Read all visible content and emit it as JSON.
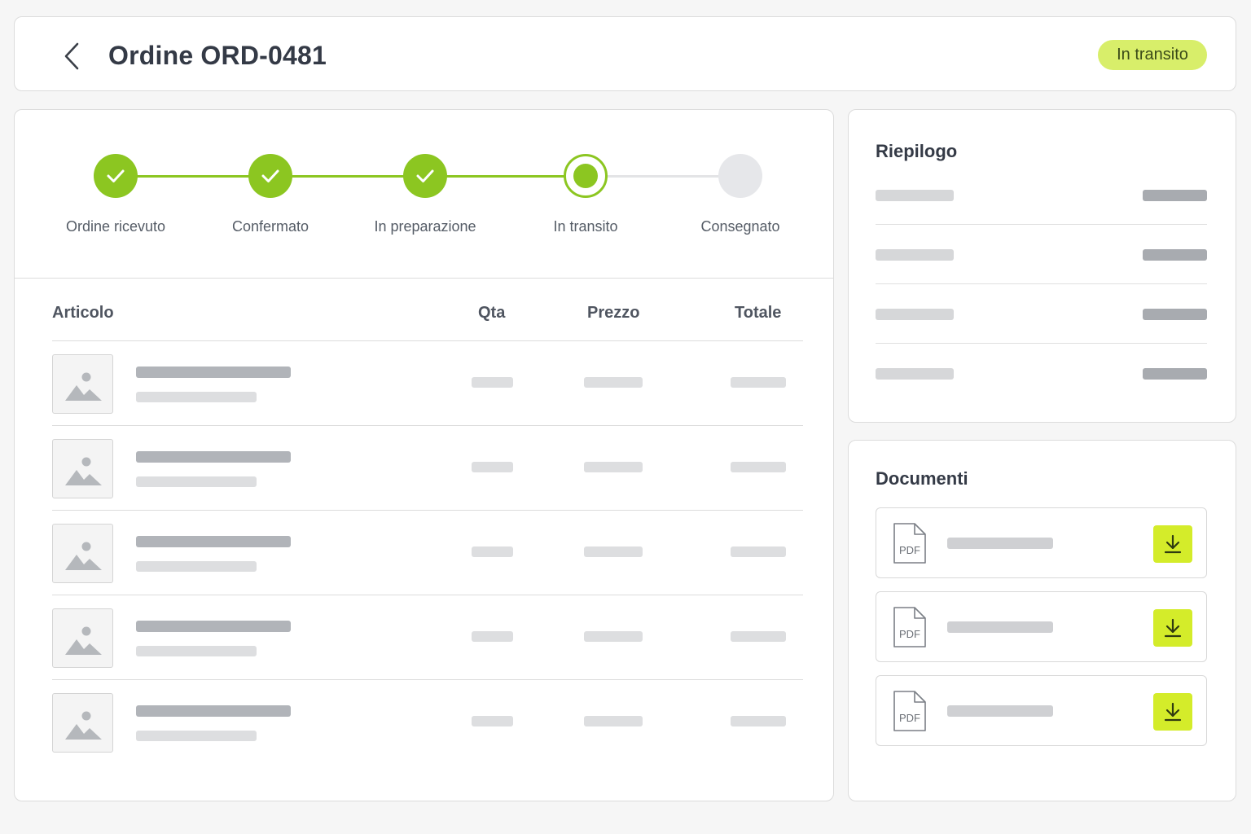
{
  "header": {
    "title": "Ordine ORD-0481",
    "status": "In transito",
    "back_icon": "chevron-left-icon"
  },
  "stepper": {
    "steps": [
      {
        "label": "Ordine ricevuto",
        "state": "done"
      },
      {
        "label": "Confermato",
        "state": "done"
      },
      {
        "label": "In preparazione",
        "state": "done"
      },
      {
        "label": "In transito",
        "state": "current"
      },
      {
        "label": "Consegnato",
        "state": "pending"
      }
    ]
  },
  "table": {
    "columns": {
      "item": "Articolo",
      "qty": "Qta",
      "price": "Prezzo",
      "total": "Totale"
    },
    "row_count": 5
  },
  "summary": {
    "title": "Riepilogo",
    "row_count": 4
  },
  "documents": {
    "title": "Documenti",
    "items": [
      {
        "type": "PDF"
      },
      {
        "type": "PDF"
      },
      {
        "type": "PDF"
      }
    ]
  },
  "colors": {
    "accent_green": "#8cc621",
    "badge_bg": "#d8ee6a",
    "download_bg": "#d4ec2a",
    "pending_gray": "#e6e7ea"
  }
}
